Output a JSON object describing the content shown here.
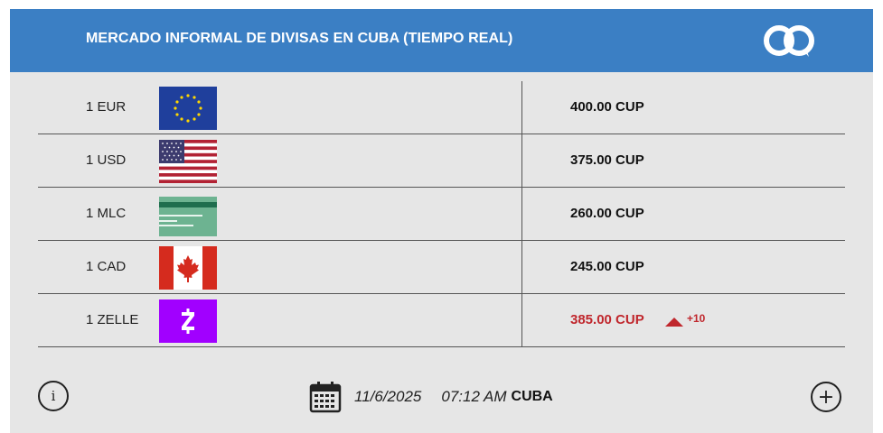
{
  "header": {
    "title": "MERCADO INFORMAL DE DIVISAS EN CUBA (TIEMPO REAL)",
    "logo_icon": "chain-link-logo-icon",
    "color": "#3b7fc4"
  },
  "rates": [
    {
      "label": "1 EUR",
      "flag": "eu-flag-icon",
      "rate": "400.00 CUP"
    },
    {
      "label": "1 USD",
      "flag": "us-flag-icon",
      "rate": "375.00 CUP"
    },
    {
      "label": "1 MLC",
      "flag": "mlc-card-icon",
      "rate": "260.00 CUP"
    },
    {
      "label": "1 CAD",
      "flag": "canada-flag-icon",
      "rate": "245.00 CUP"
    },
    {
      "label": "1 ZELLE",
      "flag": "zelle-logo-icon",
      "rate": "385.00 CUP",
      "change": "+10",
      "trend": "up",
      "trend_color": "#c0272d"
    }
  ],
  "footer": {
    "date": "11/6/2025",
    "time": "07:12 AM",
    "location": "CUBA",
    "info_icon": "info-icon",
    "calendar_icon": "calendar-icon",
    "plus_icon": "plus-icon",
    "info_glyph": "i",
    "plus_glyph": "+"
  }
}
